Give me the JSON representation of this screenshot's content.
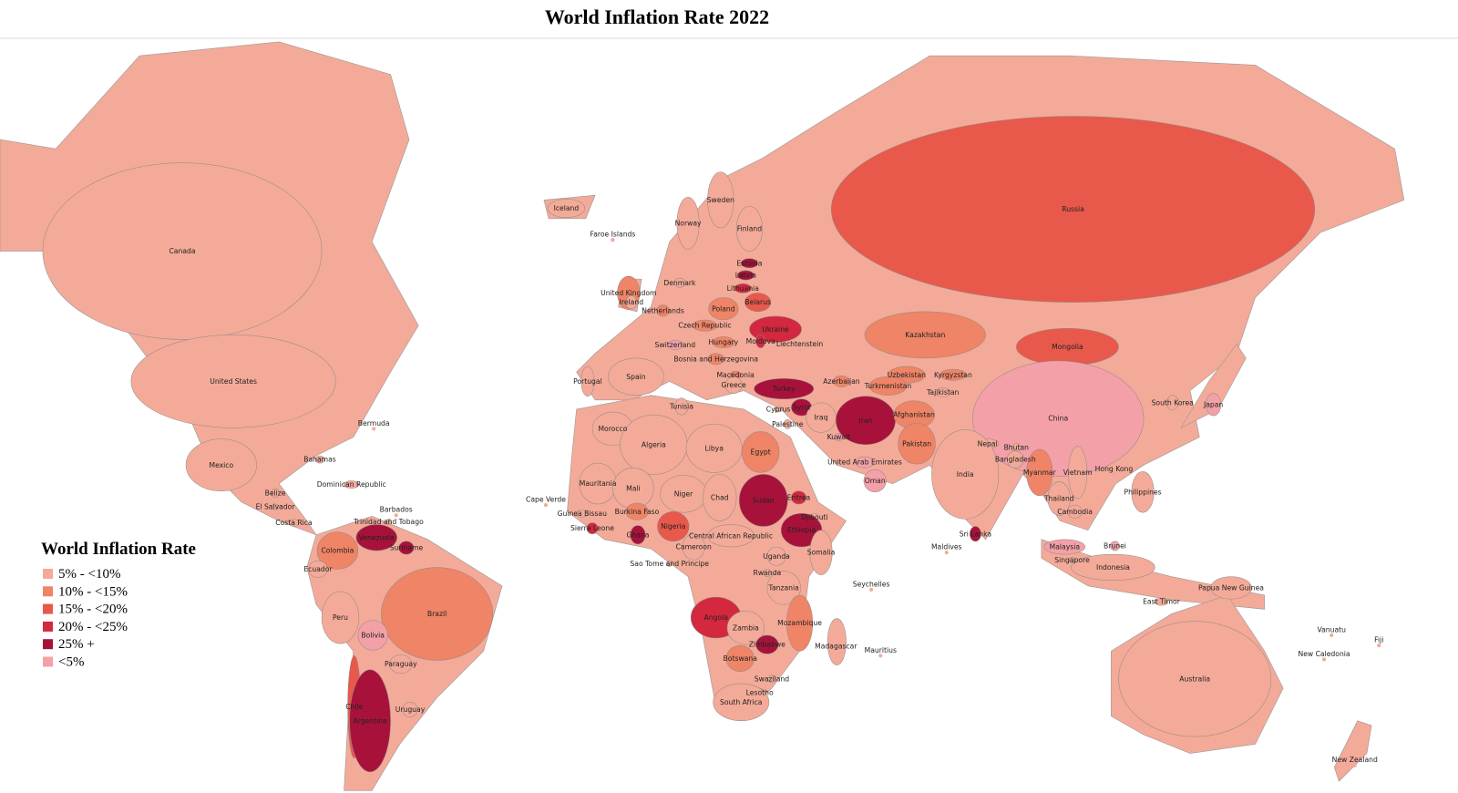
{
  "title": "World Inflation Rate 2022",
  "legend": {
    "title": "World Inflation Rate",
    "items": [
      {
        "label": "5% - <10%",
        "color": "#f4aa98"
      },
      {
        "label": "10% - <15%",
        "color": "#ef8466"
      },
      {
        "label": "15% - <20%",
        "color": "#e8594b"
      },
      {
        "label": "20% - <25%",
        "color": "#d3283e"
      },
      {
        "label": "25% +",
        "color": "#a8123a"
      },
      {
        "label": "<5%",
        "color": "#f4a0a8"
      }
    ]
  },
  "countries": [
    {
      "name": "Canada",
      "class": 0
    },
    {
      "name": "United States",
      "class": 0
    },
    {
      "name": "Mexico",
      "class": 0
    },
    {
      "name": "Bermuda",
      "class": 0
    },
    {
      "name": "Bahamas",
      "class": 0
    },
    {
      "name": "Dominican Republic",
      "class": 0
    },
    {
      "name": "Belize",
      "class": 0
    },
    {
      "name": "El Salvador",
      "class": 0
    },
    {
      "name": "Costa Rica",
      "class": 0
    },
    {
      "name": "Barbados",
      "class": 0
    },
    {
      "name": "Trinidad and Tobago",
      "class": 0
    },
    {
      "name": "Colombia",
      "class": 1
    },
    {
      "name": "Venezuela",
      "class": 4
    },
    {
      "name": "Suriname",
      "class": 4
    },
    {
      "name": "Ecuador",
      "class": 0
    },
    {
      "name": "Peru",
      "class": 0
    },
    {
      "name": "Brazil",
      "class": 1
    },
    {
      "name": "Bolivia",
      "class": 5
    },
    {
      "name": "Chile",
      "class": 2
    },
    {
      "name": "Paraguay",
      "class": 0
    },
    {
      "name": "Argentina",
      "class": 4
    },
    {
      "name": "Uruguay",
      "class": 0
    },
    {
      "name": "Iceland",
      "class": 0
    },
    {
      "name": "Faroe Islands",
      "class": 5
    },
    {
      "name": "Norway",
      "class": 0
    },
    {
      "name": "Sweden",
      "class": 0
    },
    {
      "name": "Finland",
      "class": 0
    },
    {
      "name": "Estonia",
      "class": 4
    },
    {
      "name": "Latvia",
      "class": 4
    },
    {
      "name": "Lithuania",
      "class": 3
    },
    {
      "name": "Denmark",
      "class": 0
    },
    {
      "name": "United Kingdom",
      "class": 1
    },
    {
      "name": "Ireland",
      "class": 0
    },
    {
      "name": "Netherlands",
      "class": 1
    },
    {
      "name": "Belarus",
      "class": 2
    },
    {
      "name": "Poland",
      "class": 1
    },
    {
      "name": "Czech Republic",
      "class": 1
    },
    {
      "name": "Ukraine",
      "class": 3
    },
    {
      "name": "Moldova",
      "class": 3
    },
    {
      "name": "Hungary",
      "class": 1
    },
    {
      "name": "Switzerland",
      "class": 5
    },
    {
      "name": "Liechtenstein",
      "class": 5
    },
    {
      "name": "Bosnia and Herzegovina",
      "class": 1
    },
    {
      "name": "Portugal",
      "class": 0
    },
    {
      "name": "Spain",
      "class": 0
    },
    {
      "name": "Macedonia",
      "class": 1
    },
    {
      "name": "Greece",
      "class": 0
    },
    {
      "name": "Turkey",
      "class": 4
    },
    {
      "name": "Azerbaijan",
      "class": 1
    },
    {
      "name": "Kazakhstan",
      "class": 1
    },
    {
      "name": "Uzbekistan",
      "class": 1
    },
    {
      "name": "Kyrgyzstan",
      "class": 1
    },
    {
      "name": "Turkmenistan",
      "class": 1
    },
    {
      "name": "Tajikistan",
      "class": 0
    },
    {
      "name": "Russia",
      "class": 2
    },
    {
      "name": "Mongolia",
      "class": 2
    },
    {
      "name": "China",
      "class": 5
    },
    {
      "name": "Japan",
      "class": 5
    },
    {
      "name": "South Korea",
      "class": 0
    },
    {
      "name": "Tunisia",
      "class": 0
    },
    {
      "name": "Cyprus",
      "class": 0
    },
    {
      "name": "Syria",
      "class": 4
    },
    {
      "name": "Palestine",
      "class": 0
    },
    {
      "name": "Iraq",
      "class": 0
    },
    {
      "name": "Iran",
      "class": 4
    },
    {
      "name": "Afghanistan",
      "class": 1
    },
    {
      "name": "Morocco",
      "class": 0
    },
    {
      "name": "Algeria",
      "class": 0
    },
    {
      "name": "Libya",
      "class": 0
    },
    {
      "name": "Egypt",
      "class": 1
    },
    {
      "name": "Kuwait",
      "class": 5
    },
    {
      "name": "Pakistan",
      "class": 1
    },
    {
      "name": "Nepal",
      "class": 0
    },
    {
      "name": "Bhutan",
      "class": 0
    },
    {
      "name": "Bangladesh",
      "class": 0
    },
    {
      "name": "India",
      "class": 0
    },
    {
      "name": "United Arab Emirates",
      "class": 5
    },
    {
      "name": "Oman",
      "class": 5
    },
    {
      "name": "Myanmar",
      "class": 1
    },
    {
      "name": "Vietnam",
      "class": 0
    },
    {
      "name": "Hong Kong",
      "class": 5
    },
    {
      "name": "Thailand",
      "class": 0
    },
    {
      "name": "Cambodia",
      "class": 0
    },
    {
      "name": "Philippines",
      "class": 0
    },
    {
      "name": "Mauritania",
      "class": 0
    },
    {
      "name": "Mali",
      "class": 0
    },
    {
      "name": "Niger",
      "class": 0
    },
    {
      "name": "Chad",
      "class": 0
    },
    {
      "name": "Sudan",
      "class": 4
    },
    {
      "name": "Eritrea",
      "class": 3
    },
    {
      "name": "Djibouti",
      "class": 0
    },
    {
      "name": "Ethiopia",
      "class": 4
    },
    {
      "name": "Cape Verde",
      "class": 0
    },
    {
      "name": "Guinea Bissau",
      "class": 0
    },
    {
      "name": "Burkina Faso",
      "class": 1
    },
    {
      "name": "Sierra Leone",
      "class": 3
    },
    {
      "name": "Ghana",
      "class": 4
    },
    {
      "name": "Nigeria",
      "class": 2
    },
    {
      "name": "Central African Republic",
      "class": 0
    },
    {
      "name": "Cameroon",
      "class": 0
    },
    {
      "name": "Somalia",
      "class": 0
    },
    {
      "name": "Sri Lanka",
      "class": 4
    },
    {
      "name": "Maldives",
      "class": 0
    },
    {
      "name": "Uganda",
      "class": 0
    },
    {
      "name": "Sao Tome and Principe",
      "class": 0
    },
    {
      "name": "Rwanda",
      "class": 0
    },
    {
      "name": "Tanzania",
      "class": 0
    },
    {
      "name": "Seychelles",
      "class": 0
    },
    {
      "name": "Malaysia",
      "class": 5
    },
    {
      "name": "Brunei",
      "class": 5
    },
    {
      "name": "Singapore",
      "class": 0
    },
    {
      "name": "Indonesia",
      "class": 0
    },
    {
      "name": "Papua New Guinea",
      "class": 0
    },
    {
      "name": "East Timor",
      "class": 0
    },
    {
      "name": "Angola",
      "class": 3
    },
    {
      "name": "Mozambique",
      "class": 1
    },
    {
      "name": "Zambia",
      "class": 0
    },
    {
      "name": "Zimbabwe",
      "class": 4
    },
    {
      "name": "Madagascar",
      "class": 0
    },
    {
      "name": "Mauritius",
      "class": 0
    },
    {
      "name": "Botswana",
      "class": 1
    },
    {
      "name": "Swaziland",
      "class": 0
    },
    {
      "name": "Lesotho",
      "class": 0
    },
    {
      "name": "South Africa",
      "class": 0
    },
    {
      "name": "Vanuatu",
      "class": 0
    },
    {
      "name": "Fiji",
      "class": 0
    },
    {
      "name": "New Caledonia",
      "class": 0
    },
    {
      "name": "Australia",
      "class": 0
    },
    {
      "name": "New Zealand",
      "class": 0
    }
  ]
}
